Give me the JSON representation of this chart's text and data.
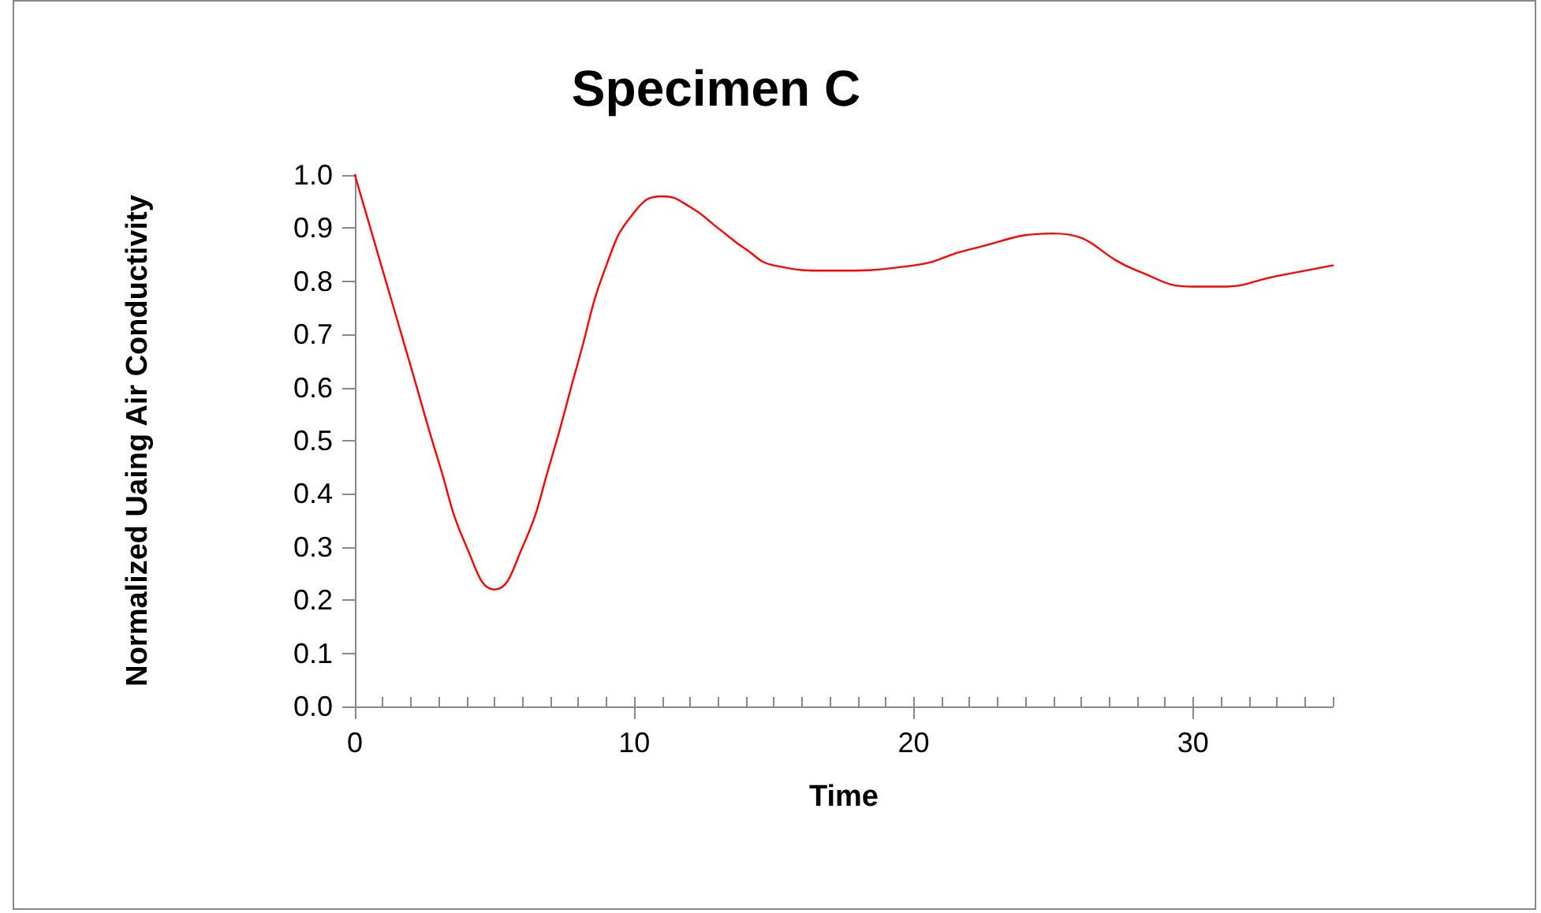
{
  "chart_data": {
    "type": "line",
    "title": "Specimen C",
    "xlabel": "Time",
    "ylabel": "Normalized Uaing Air Conductivity",
    "x": [
      0,
      1,
      2,
      3,
      4,
      5,
      6,
      7,
      8,
      9,
      10,
      11,
      12,
      13,
      14,
      15,
      17,
      20,
      22,
      25,
      28,
      30,
      31,
      33,
      35
    ],
    "series": [
      {
        "color": "#ff0000",
        "values": [
          1.0,
          0.82,
          0.64,
          0.46,
          0.3,
          0.22,
          0.3,
          0.46,
          0.65,
          0.83,
          0.93,
          0.96,
          0.94,
          0.9,
          0.86,
          0.83,
          0.82,
          0.83,
          0.86,
          0.89,
          0.82,
          0.79,
          0.79,
          0.81,
          0.83
        ]
      }
    ],
    "xlim": [
      0,
      35
    ],
    "xticks": [
      0,
      10,
      20,
      30
    ],
    "ylim": [
      0,
      1.0
    ],
    "yticks": [
      {
        "value": 0,
        "label": "0.0"
      },
      {
        "value": 0.1,
        "label": "0.1"
      },
      {
        "value": 0.2,
        "label": "0.2"
      },
      {
        "value": 0.3,
        "label": "0.3"
      },
      {
        "value": 0.4,
        "label": "0.4"
      },
      {
        "value": 0.5,
        "label": "0.5"
      },
      {
        "value": 0.6,
        "label": "0.6"
      },
      {
        "value": 0.7,
        "label": "0.7"
      },
      {
        "value": 0.8,
        "label": "0.8"
      },
      {
        "value": 0.9,
        "label": "0.9"
      },
      {
        "value": 1.0,
        "label": "1.0"
      }
    ],
    "grid": false,
    "marker": "none",
    "line_style": "solid"
  }
}
